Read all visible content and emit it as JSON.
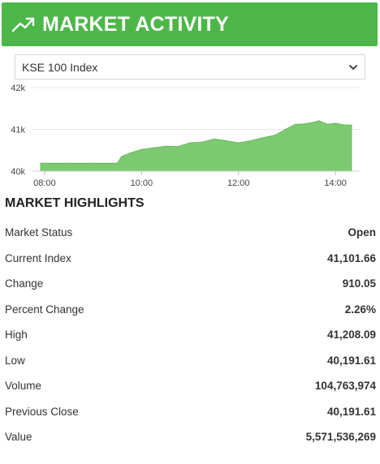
{
  "header": {
    "title": "MARKET ACTIVITY",
    "icon": "trending-up-icon",
    "background": "#4cb748"
  },
  "index_select": {
    "selected": "KSE 100 Index"
  },
  "chart_data": {
    "type": "area",
    "color": "#7cc971",
    "x_tick_labels": [
      "08:00",
      "10:00",
      "12:00",
      "14:00"
    ],
    "y_tick_labels": [
      "42k",
      "41k",
      "40k"
    ],
    "ylim": [
      40000,
      42000
    ],
    "xlim": [
      "07:45",
      "14:30"
    ],
    "grid": true,
    "series": [
      {
        "x": [
          "07:55",
          "08:30",
          "09:00",
          "09:30",
          "09:35",
          "09:45",
          "10:00",
          "10:15",
          "10:30",
          "10:45",
          "11:00",
          "11:15",
          "11:30",
          "11:45",
          "12:00",
          "12:15",
          "12:30",
          "12:45",
          "13:00",
          "13:10",
          "13:20",
          "13:30",
          "13:40",
          "13:50",
          "14:00",
          "14:10",
          "14:20"
        ],
        "y": [
          40191,
          40191,
          40191,
          40191,
          40350,
          40430,
          40520,
          40560,
          40600,
          40590,
          40680,
          40700,
          40770,
          40730,
          40680,
          40730,
          40800,
          40860,
          41020,
          41120,
          41130,
          41160,
          41208,
          41120,
          41150,
          41110,
          41101
        ]
      }
    ]
  },
  "highlights": {
    "title": "MARKET HIGHLIGHTS",
    "rows": [
      {
        "label": "Market Status",
        "value": "Open"
      },
      {
        "label": "Current Index",
        "value": "41,101.66"
      },
      {
        "label": "Change",
        "value": "910.05"
      },
      {
        "label": "Percent Change",
        "value": "2.26%"
      },
      {
        "label": "High",
        "value": "41,208.09"
      },
      {
        "label": "Low",
        "value": "40,191.61"
      },
      {
        "label": "Volume",
        "value": "104,763,974"
      },
      {
        "label": "Previous Close",
        "value": "40,191.61"
      },
      {
        "label": "Value",
        "value": "5,571,536,269"
      }
    ]
  }
}
